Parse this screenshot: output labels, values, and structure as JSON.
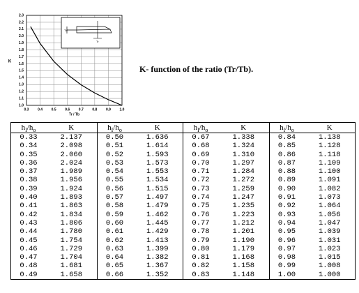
{
  "chart_data": {
    "type": "line",
    "x": [
      0.33,
      0.4,
      0.5,
      0.6,
      0.7,
      0.8,
      0.9,
      1.0
    ],
    "values": [
      2.137,
      1.893,
      1.636,
      1.445,
      1.297,
      1.179,
      1.082,
      1.0
    ],
    "color": "#000000",
    "xlim": [
      0.3,
      1.0
    ],
    "ylim": [
      1.0,
      2.3
    ],
    "xticks": [
      0.3,
      0.4,
      0.5,
      0.6,
      0.7,
      0.8,
      0.9,
      {
        "value": 1.0,
        "label": "1.0"
      }
    ],
    "yticks": [
      {
        "value": 1.0,
        "label": "1.0"
      },
      1.1,
      1.2,
      1.3,
      1.4,
      1.5,
      1.6,
      1.7,
      1.8,
      1.9,
      {
        "value": 2.0,
        "label": "2.0"
      },
      2.1,
      2.2,
      2.3
    ],
    "xlabel": "Tr / Tb",
    "ylabel": "K",
    "grid": true,
    "annotations": [
      "Tb",
      "Tr"
    ]
  },
  "caption": "K- function of the ratio (Tr/Tb).",
  "table": {
    "header": [
      [
        "h",
        "I",
        "/h",
        "o"
      ],
      "K",
      [
        "h",
        "I",
        "/h",
        "o"
      ],
      "K",
      [
        "h",
        "I",
        "/h",
        "o"
      ],
      "K",
      [
        "h",
        "I",
        "/h",
        "o"
      ],
      "K"
    ],
    "rows": [
      [
        "0.33",
        "2.137",
        "0.50",
        "1.636",
        "0.67",
        "1.338",
        "0.84",
        "1.138"
      ],
      [
        "0.34",
        "2.098",
        "0.51",
        "1.614",
        "0.68",
        "1.324",
        "0.85",
        "1.128"
      ],
      [
        "0.35",
        "2.060",
        "0.52",
        "1.593",
        "0.69",
        "1.310",
        "0.86",
        "1.118"
      ],
      [
        "0.36",
        "2.024",
        "0.53",
        "1.573",
        "0.70",
        "1.297",
        "0.87",
        "1.109"
      ],
      [
        "0.37",
        "1.989",
        "0.54",
        "1.553",
        "0.71",
        "1.284",
        "0.88",
        "1.100"
      ],
      [
        "0.38",
        "1.956",
        "0.55",
        "1.534",
        "0.72",
        "1.272",
        "0.89",
        "1.091"
      ],
      [
        "0.39",
        "1.924",
        "0.56",
        "1.515",
        "0.73",
        "1.259",
        "0.90",
        "1.082"
      ],
      [
        "0.40",
        "1.893",
        "0.57",
        "1.497",
        "0.74",
        "1.247",
        "0.91",
        "1.073"
      ],
      [
        "0.41",
        "1.863",
        "0.58",
        "1.479",
        "0.75",
        "1.235",
        "0.92",
        "1.064"
      ],
      [
        "0.42",
        "1.834",
        "0.59",
        "1.462",
        "0.76",
        "1.223",
        "0.93",
        "1.056"
      ],
      [
        "0.43",
        "1.806",
        "0.60",
        "1.445",
        "0.77",
        "1.212",
        "0.94",
        "1.047"
      ],
      [
        "0.44",
        "1.780",
        "0.61",
        "1.429",
        "0.78",
        "1.201",
        "0.95",
        "1.039"
      ],
      [
        "0.45",
        "1.754",
        "0.62",
        "1.413",
        "0.79",
        "1.190",
        "0.96",
        "1.031"
      ],
      [
        "0.46",
        "1.729",
        "0.63",
        "1.399",
        "0.80",
        "1.179",
        "0.97",
        "1.023"
      ],
      [
        "0.47",
        "1.704",
        "0.64",
        "1.382",
        "0.81",
        "1.168",
        "0.98",
        "1.015"
      ],
      [
        "0.48",
        "1.681",
        "0.65",
        "1.367",
        "0.82",
        "1.158",
        "0.99",
        "1.008"
      ],
      [
        "0.49",
        "1.658",
        "0.66",
        "1.352",
        "0.83",
        "1.148",
        "1.00",
        "1.000"
      ]
    ]
  }
}
